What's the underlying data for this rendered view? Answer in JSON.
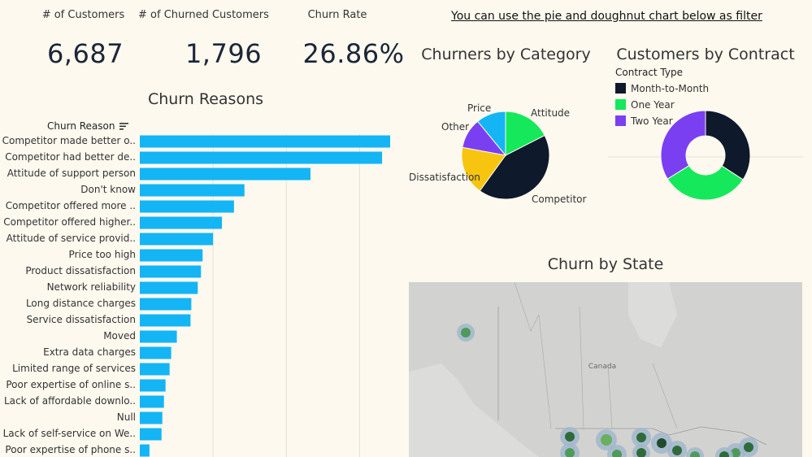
{
  "kpis": [
    {
      "label": "# of Customers",
      "value": "6,687"
    },
    {
      "label": "# of Churned Customers",
      "value": "1,796"
    },
    {
      "label": "Churn Rate",
      "value": "26.86%"
    }
  ],
  "filter_note": "You can use the pie and doughnut chart below as filter",
  "colors": {
    "bar": "#13b5f5",
    "background": "#fdf9ef"
  },
  "chart_data": [
    {
      "type": "bar",
      "orientation": "horizontal",
      "title": "Churn Reasons",
      "axis_header": "Churn Reason",
      "categories": [
        "Competitor made better o..",
        "Competitor had better de..",
        "Attitude of support person",
        "Don't know",
        "Competitor offered more ..",
        "Competitor offered higher..",
        "Attitude of service provid..",
        "Price too high",
        "Product dissatisfaction",
        "Network reliability",
        "Long distance charges",
        "Service dissatisfaction",
        "Moved",
        "Extra data charges",
        "Limited range of services",
        "Poor expertise of online s..",
        "Lack of affordable downlo..",
        "Null",
        "Lack of self-service on We..",
        "Poor expertise of phone s.."
      ],
      "values": [
        311,
        301,
        212,
        130,
        117,
        102,
        91,
        78,
        76,
        72,
        64,
        63,
        46,
        39,
        37,
        32,
        30,
        28,
        27,
        12
      ],
      "xlim": [
        0,
        320
      ]
    },
    {
      "type": "pie",
      "title": "Churners by Category",
      "labels": [
        "Competitor",
        "Dissatisfaction",
        "Other",
        "Price",
        "Attitude"
      ],
      "values": [
        761,
        321,
        200,
        196,
        314
      ],
      "colors": [
        "#0e1a2b",
        "#f7c510",
        "#7b3ff2",
        "#13b5f5",
        "#15e85a"
      ]
    },
    {
      "type": "pie",
      "subtype": "doughnut",
      "title": "Customers by Contract",
      "legend_title": "Contract Type",
      "labels": [
        "Month-to-Month",
        "One Year",
        "Two Year"
      ],
      "values": [
        1655,
        1550,
        1640
      ],
      "colors": [
        "#0e1a2b",
        "#15e85a",
        "#7b3ff2"
      ]
    },
    {
      "type": "map",
      "title": "Churn by State",
      "place_label": "Canada"
    }
  ]
}
